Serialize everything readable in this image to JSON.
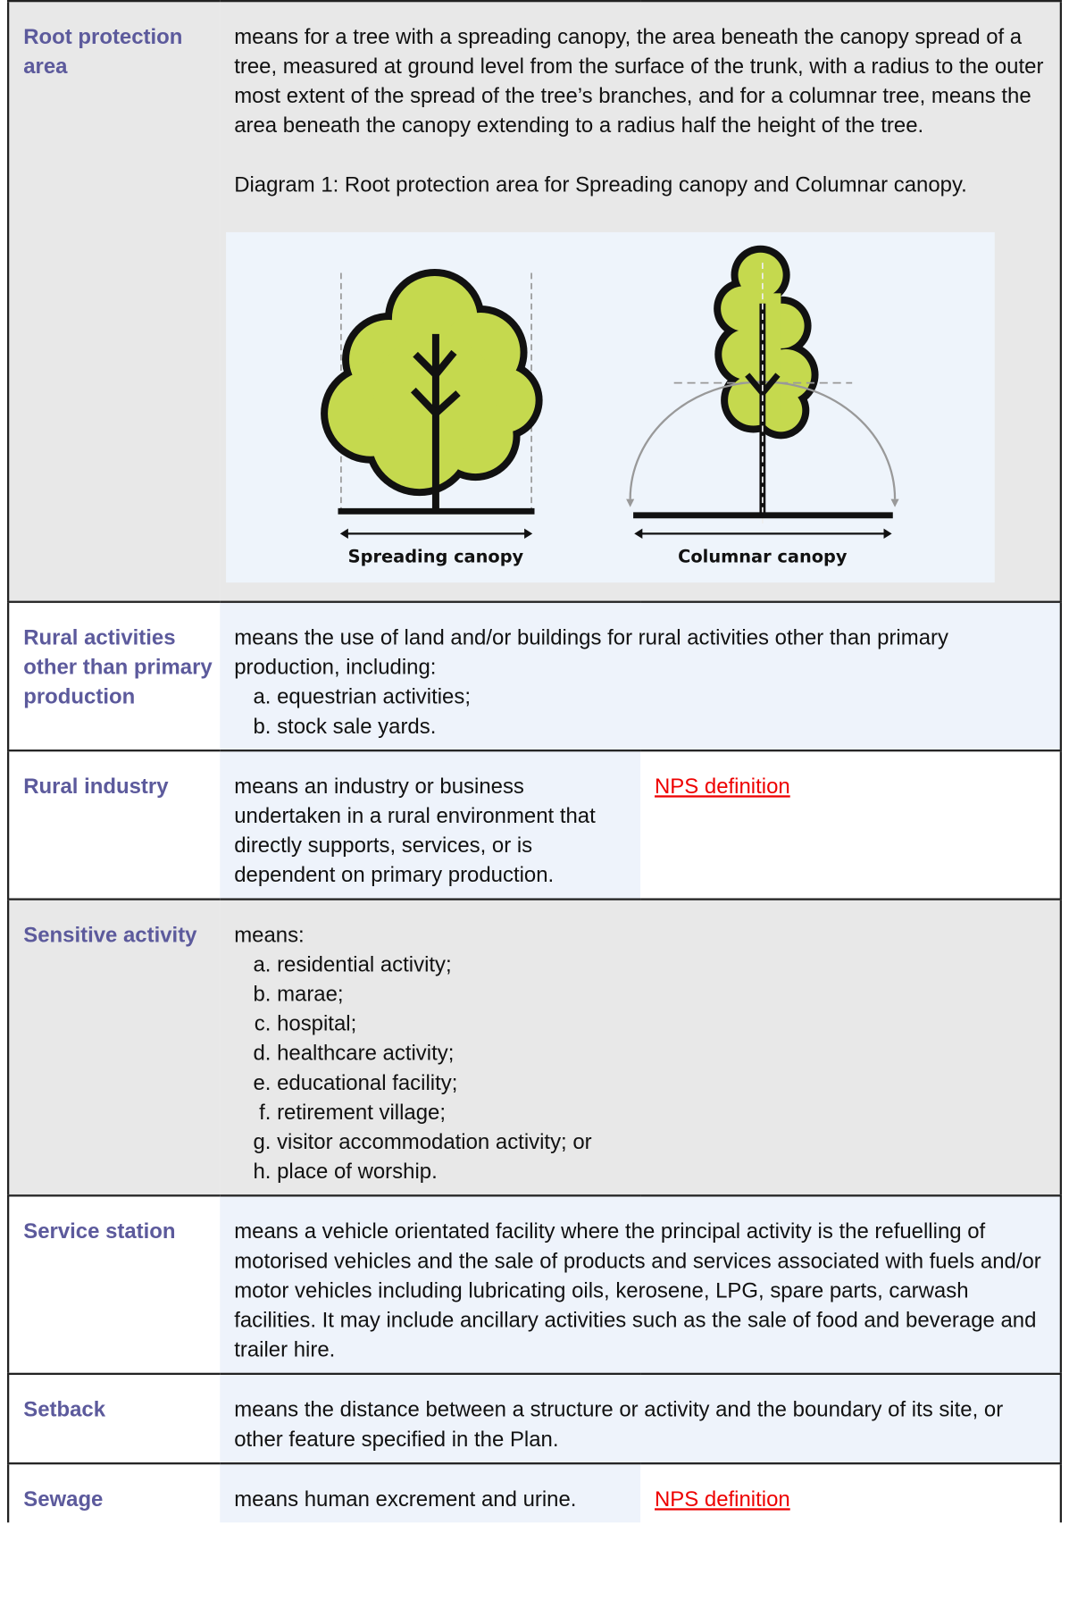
{
  "rows": [
    {
      "term": "Root protection area",
      "definition": "means for a tree with a spreading canopy, the area beneath the canopy spread of a tree, measured at ground level from the surface of the trunk, with a radius to the outer most extent of the spread of the tree’s branches, and for a columnar tree, means the area beneath the canopy extending to a radius half the height of the tree.",
      "caption": "Diagram 1: Root protection area for Spreading canopy and Columnar canopy.",
      "diagram_labels": [
        "Spreading canopy",
        "Columnar canopy"
      ]
    },
    {
      "term": "Rural activities other than primary production",
      "definition": "means the use of land and/or buildings for rural activities other than primary production, including:",
      "items": [
        "equestrian activities;",
        "stock sale yards."
      ]
    },
    {
      "term": "Rural industry",
      "definition": "means an industry or business undertaken in a rural environment that directly supports, services, or is dependent on primary production.",
      "link": "NPS definition"
    },
    {
      "term": "Sensitive activity",
      "definition": "means:",
      "items": [
        "residential activity;",
        "marae;",
        "hospital;",
        "healthcare activity;",
        "educational facility;",
        "retirement village;",
        "visitor accommodation activity; or",
        "place of worship."
      ]
    },
    {
      "term": "Service station",
      "definition": "means a vehicle orientated facility where the principal activity is the refuelling of motorised vehicles and the sale of products and services associated with fuels and/or motor vehicles including lubricating oils, kerosene, LPG, spare parts, carwash facilities. It may include ancillary activities such as the sale of food and beverage and trailer hire."
    },
    {
      "term": "Setback",
      "definition": "means the distance between a structure or activity and the boundary of its site, or other feature specified in the Plan."
    },
    {
      "term": "Sewage",
      "definition": "means human excrement and urine.",
      "link": "NPS definition"
    }
  ]
}
